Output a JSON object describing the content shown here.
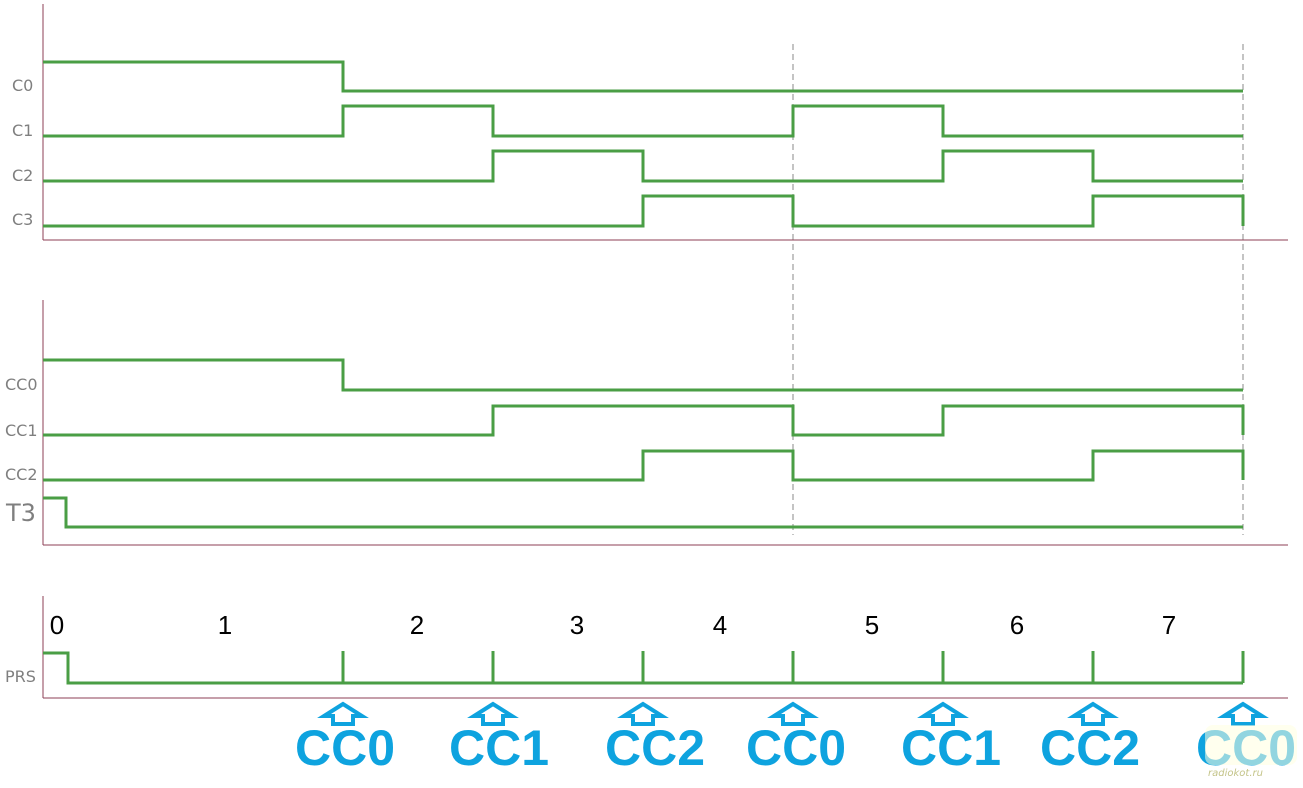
{
  "colors": {
    "trace": "#4a9e45",
    "axis": "#8d3f55",
    "label": "#7f7f7f",
    "event": "#0ea3df",
    "guide": "#8a8a8a"
  },
  "panel1": {
    "signals": [
      {
        "label": "C0"
      },
      {
        "label": "C1"
      },
      {
        "label": "C2"
      },
      {
        "label": "C3"
      }
    ]
  },
  "panel2": {
    "signals": [
      {
        "label": "CC0"
      },
      {
        "label": "CC1"
      },
      {
        "label": "CC2"
      },
      {
        "label": "T3"
      }
    ]
  },
  "panel3": {
    "signal_label": "PRS",
    "slots": [
      "0",
      "1",
      "2",
      "3",
      "4",
      "5",
      "6",
      "7"
    ]
  },
  "events": [
    {
      "label": "CC0",
      "icon": "up-arrow-icon"
    },
    {
      "label": "CC1",
      "icon": "up-arrow-icon"
    },
    {
      "label": "CC2",
      "icon": "up-arrow-icon"
    },
    {
      "label": "CC0",
      "icon": "up-arrow-icon"
    },
    {
      "label": "CC1",
      "icon": "up-arrow-icon"
    },
    {
      "label": "CC2",
      "icon": "up-arrow-icon"
    },
    {
      "label": "CC0",
      "icon": "up-arrow-icon"
    }
  ],
  "watermark": "radiokot.ru"
}
